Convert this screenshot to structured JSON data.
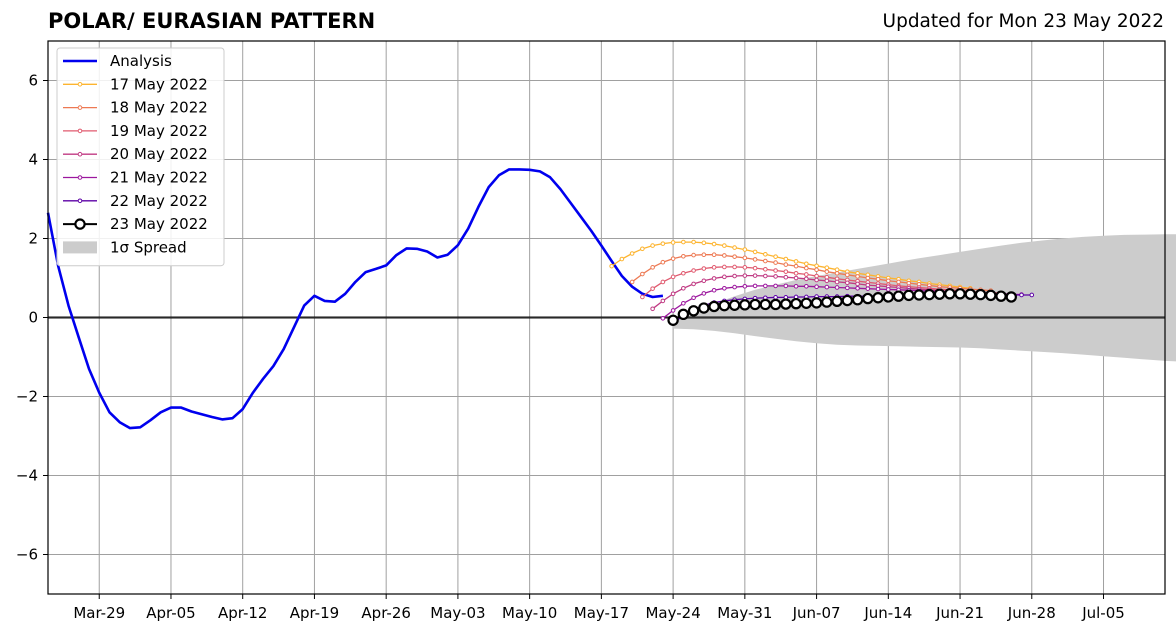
{
  "header": {
    "title": "POLAR/ EURASIAN  PATTERN",
    "updated": "Updated for Mon 23 May 2022"
  },
  "chart_data": {
    "type": "line",
    "title": "POLAR/ EURASIAN  PATTERN",
    "subtitle": "Updated for Mon 23 May 2022",
    "xlabel": "",
    "ylabel": "",
    "x_start": "2022-03-24",
    "x_end": "2022-07-11",
    "ylim": [
      -7,
      7
    ],
    "yticks": [
      -6,
      -4,
      -2,
      0,
      2,
      4,
      6
    ],
    "xtick_dates": [
      "2022-03-29",
      "2022-04-05",
      "2022-04-12",
      "2022-04-19",
      "2022-04-26",
      "2022-05-03",
      "2022-05-10",
      "2022-05-17",
      "2022-05-24",
      "2022-05-31",
      "2022-06-07",
      "2022-06-14",
      "2022-06-21",
      "2022-06-28",
      "2022-07-05"
    ],
    "xtick_labels": [
      "Mar-29",
      "Apr-05",
      "Apr-12",
      "Apr-19",
      "Apr-26",
      "May-03",
      "May-10",
      "May-17",
      "May-24",
      "May-31",
      "Jun-07",
      "Jun-14",
      "Jun-21",
      "Jun-28",
      "Jul-05"
    ],
    "grid": true,
    "legend_position": "top-left",
    "analysis": {
      "name": "Analysis",
      "color": "#0000ee",
      "start_date": "2022-03-24",
      "values": [
        2.65,
        1.3,
        0.3,
        -0.5,
        -1.3,
        -1.9,
        -2.4,
        -2.65,
        -2.8,
        -2.78,
        -2.6,
        -2.4,
        -2.28,
        -2.28,
        -2.38,
        -2.45,
        -2.52,
        -2.58,
        -2.55,
        -2.32,
        -1.9,
        -1.55,
        -1.23,
        -0.8,
        -0.25,
        0.3,
        0.55,
        0.42,
        0.4,
        0.6,
        0.9,
        1.15,
        1.23,
        1.32,
        1.58,
        1.75,
        1.74,
        1.67,
        1.52,
        1.59,
        1.83,
        2.25,
        2.8,
        3.3,
        3.6,
        3.75,
        3.75,
        3.74,
        3.7,
        3.55,
        3.25,
        2.9,
        2.55,
        2.2,
        1.82,
        1.43,
        1.05,
        0.78,
        0.6,
        0.52,
        0.55
      ]
    },
    "forecasts": [
      {
        "name": "17 May 2022",
        "color": "#fdb42f",
        "start_date": "2022-05-18",
        "values": [
          1.3,
          1.48,
          1.62,
          1.74,
          1.82,
          1.87,
          1.9,
          1.91,
          1.91,
          1.89,
          1.86,
          1.82,
          1.77,
          1.72,
          1.66,
          1.6,
          1.54,
          1.48,
          1.42,
          1.36,
          1.31,
          1.26,
          1.21,
          1.16,
          1.12,
          1.08,
          1.04,
          1.0,
          0.97,
          0.93,
          0.9,
          0.86,
          0.83,
          0.8,
          0.77,
          0.74
        ]
      },
      {
        "name": "18 May 2022",
        "color": "#ed7953",
        "start_date": "2022-05-20",
        "values": [
          0.9,
          1.1,
          1.27,
          1.4,
          1.49,
          1.55,
          1.58,
          1.59,
          1.59,
          1.57,
          1.54,
          1.51,
          1.47,
          1.43,
          1.39,
          1.34,
          1.3,
          1.25,
          1.21,
          1.16,
          1.12,
          1.08,
          1.04,
          1.0,
          0.97,
          0.93,
          0.9,
          0.87,
          0.84,
          0.81,
          0.78,
          0.76,
          0.74,
          0.72,
          0.7,
          0.68
        ]
      },
      {
        "name": "19 May 2022",
        "color": "#e05a6f",
        "start_date": "2022-05-21",
        "values": [
          0.52,
          0.73,
          0.9,
          1.03,
          1.12,
          1.19,
          1.24,
          1.27,
          1.28,
          1.28,
          1.27,
          1.25,
          1.22,
          1.19,
          1.16,
          1.12,
          1.09,
          1.05,
          1.02,
          0.98,
          0.95,
          0.92,
          0.89,
          0.86,
          0.83,
          0.8,
          0.78,
          0.76,
          0.74,
          0.72,
          0.7,
          0.68,
          0.66,
          0.64,
          0.63,
          0.62
        ]
      },
      {
        "name": "20 May 2022",
        "color": "#c03a83",
        "start_date": "2022-05-22",
        "values": [
          0.22,
          0.42,
          0.6,
          0.74,
          0.85,
          0.93,
          0.99,
          1.03,
          1.05,
          1.06,
          1.06,
          1.05,
          1.04,
          1.02,
          1.0,
          0.98,
          0.95,
          0.93,
          0.9,
          0.88,
          0.85,
          0.82,
          0.8,
          0.78,
          0.76,
          0.74,
          0.72,
          0.7,
          0.68,
          0.66,
          0.64,
          0.63,
          0.62,
          0.61,
          0.6,
          0.59
        ]
      },
      {
        "name": "21 May 2022",
        "color": "#9c179e",
        "start_date": "2022-05-23",
        "values": [
          -0.02,
          0.18,
          0.36,
          0.5,
          0.61,
          0.69,
          0.74,
          0.77,
          0.79,
          0.8,
          0.8,
          0.8,
          0.8,
          0.79,
          0.79,
          0.78,
          0.77,
          0.76,
          0.75,
          0.74,
          0.73,
          0.72,
          0.71,
          0.7,
          0.69,
          0.68,
          0.67,
          0.66,
          0.65,
          0.64,
          0.63,
          0.62,
          0.61,
          0.6,
          0.59,
          0.58
        ]
      },
      {
        "name": "22 May 2022",
        "color": "#5c01a6",
        "start_date": "2022-05-24",
        "values": [
          -0.15,
          0.05,
          0.2,
          0.31,
          0.38,
          0.42,
          0.45,
          0.47,
          0.49,
          0.5,
          0.51,
          0.51,
          0.52,
          0.52,
          0.53,
          0.53,
          0.53,
          0.54,
          0.54,
          0.54,
          0.55,
          0.55,
          0.55,
          0.56,
          0.56,
          0.56,
          0.56,
          0.57,
          0.57,
          0.57,
          0.57,
          0.57,
          0.57,
          0.57,
          0.57,
          0.57
        ]
      },
      {
        "name": "23 May 2022",
        "color": "#000000",
        "start_date": "2022-05-24",
        "values": [
          -0.07,
          0.08,
          0.17,
          0.24,
          0.28,
          0.3,
          0.31,
          0.32,
          0.33,
          0.33,
          0.33,
          0.34,
          0.35,
          0.36,
          0.37,
          0.39,
          0.41,
          0.43,
          0.45,
          0.48,
          0.5,
          0.52,
          0.54,
          0.56,
          0.57,
          0.58,
          0.59,
          0.6,
          0.6,
          0.59,
          0.58,
          0.56,
          0.54,
          0.52
        ]
      }
    ],
    "spread": {
      "name": "1σ Spread",
      "color": "#cccccc",
      "start_date": "2022-05-24",
      "upper": [
        -0.05,
        0.14,
        0.35,
        0.54,
        0.7,
        0.83,
        0.95,
        1.05,
        1.14,
        1.23,
        1.32,
        1.41,
        1.5,
        1.58,
        1.66,
        1.74,
        1.82,
        1.89,
        1.95,
        2.0,
        2.04,
        2.07,
        2.09,
        2.1,
        2.11,
        2.11
      ],
      "lower": [
        -0.28,
        -0.3,
        -0.34,
        -0.4,
        -0.47,
        -0.54,
        -0.6,
        -0.65,
        -0.69,
        -0.71,
        -0.72,
        -0.73,
        -0.74,
        -0.75,
        -0.76,
        -0.78,
        -0.81,
        -0.84,
        -0.87,
        -0.9,
        -0.94,
        -0.98,
        -1.02,
        -1.06,
        -1.1,
        -1.12
      ],
      "date_step_days": 2
    }
  }
}
